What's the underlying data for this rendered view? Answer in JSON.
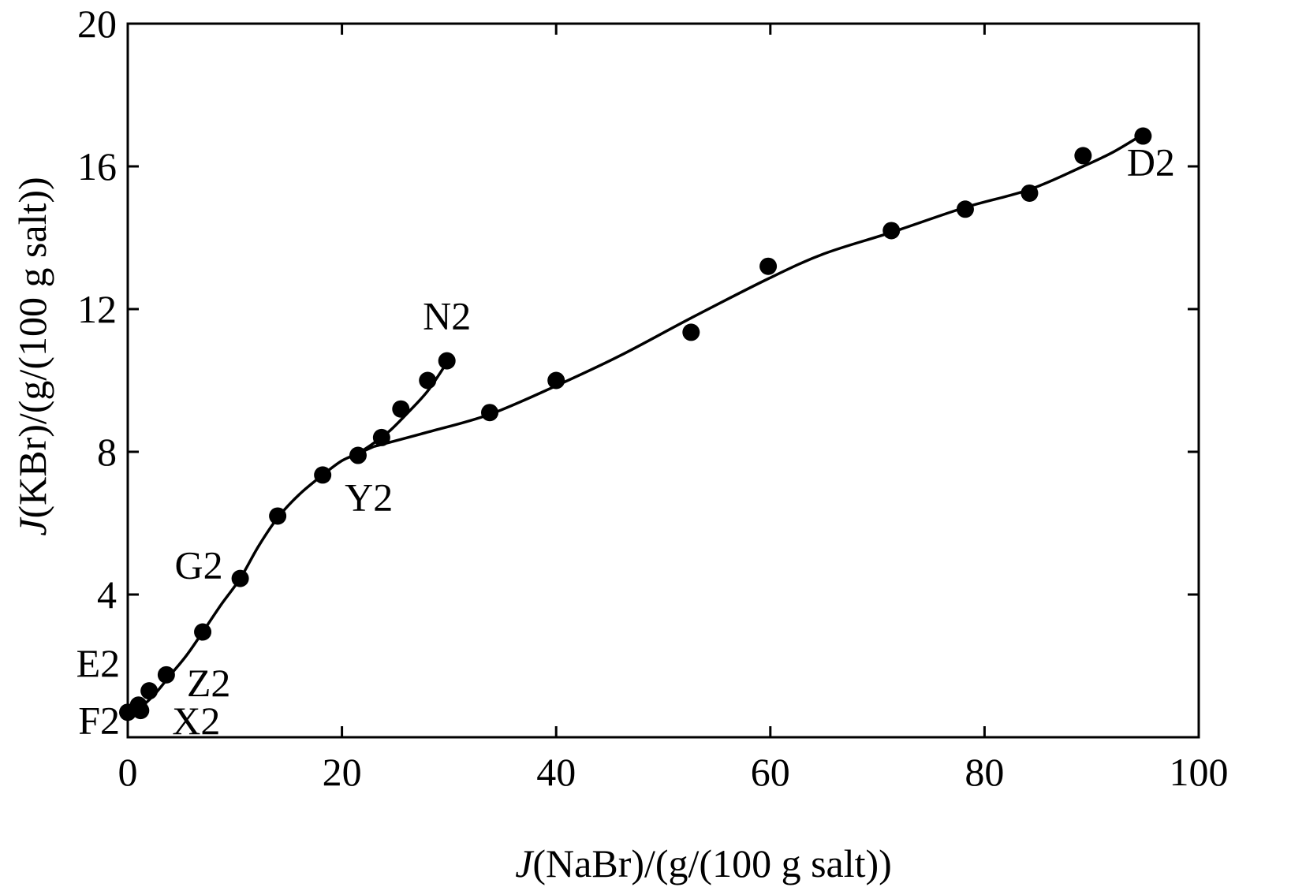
{
  "chart_data": {
    "type": "scatter",
    "xlabel_italic": "J",
    "xlabel_rest": "(NaBr)/(g/(100 g salt))",
    "ylabel_italic": "J",
    "ylabel_rest": "(KBr)/(g/(100 g salt))",
    "xlim": [
      0,
      100
    ],
    "ylim": [
      0,
      20
    ],
    "x_ticks": [
      0,
      20,
      40,
      60,
      80,
      100
    ],
    "y_ticks": [
      4,
      8,
      12,
      16,
      20
    ],
    "y_tick_labels": [
      "4",
      "8",
      "12",
      "16",
      "20"
    ],
    "x_tick_labels": [
      "0",
      "20",
      "40",
      "60",
      "80",
      "100"
    ],
    "grid": false,
    "line_color": "#000000",
    "marker_color": "#000000",
    "points": [
      {
        "x": 0.0,
        "y": 0.7
      },
      {
        "x": 1.0,
        "y": 0.9
      },
      {
        "x": 1.2,
        "y": 0.75
      },
      {
        "x": 2.0,
        "y": 1.3
      },
      {
        "x": 3.6,
        "y": 1.75
      },
      {
        "x": 7.0,
        "y": 2.95
      },
      {
        "x": 10.5,
        "y": 4.45
      },
      {
        "x": 14.0,
        "y": 6.2
      },
      {
        "x": 18.2,
        "y": 7.35
      },
      {
        "x": 21.5,
        "y": 7.9
      },
      {
        "x": 23.7,
        "y": 8.4
      },
      {
        "x": 25.5,
        "y": 9.2
      },
      {
        "x": 28.0,
        "y": 10.0
      },
      {
        "x": 29.8,
        "y": 10.55
      },
      {
        "x": 33.8,
        "y": 9.1
      },
      {
        "x": 40.0,
        "y": 10.0
      },
      {
        "x": 52.6,
        "y": 11.35
      },
      {
        "x": 59.8,
        "y": 13.2
      },
      {
        "x": 71.3,
        "y": 14.2
      },
      {
        "x": 78.2,
        "y": 14.8
      },
      {
        "x": 84.2,
        "y": 15.25
      },
      {
        "x": 89.2,
        "y": 16.3
      },
      {
        "x": 94.8,
        "y": 16.85
      }
    ],
    "curves": [
      {
        "name": "",
        "points": [
          [
            0.0,
            0.7
          ],
          [
            1.2,
            0.85
          ],
          [
            2.5,
            1.2
          ],
          [
            4.0,
            1.75
          ],
          [
            5.5,
            2.3
          ],
          [
            7.0,
            2.95
          ],
          [
            8.8,
            3.75
          ],
          [
            10.5,
            4.45
          ],
          [
            12.2,
            5.35
          ],
          [
            14.0,
            6.15
          ],
          [
            16.0,
            6.8
          ],
          [
            18.2,
            7.35
          ],
          [
            20.0,
            7.75
          ],
          [
            21.5,
            7.95
          ],
          [
            23.0,
            8.15
          ]
        ]
      },
      {
        "name": "",
        "points": [
          [
            21.5,
            7.95
          ],
          [
            23.0,
            8.25
          ],
          [
            24.5,
            8.6
          ],
          [
            26.0,
            9.05
          ],
          [
            28.0,
            9.7
          ],
          [
            29.8,
            10.5
          ]
        ]
      },
      {
        "name": "",
        "points": [
          [
            23.0,
            8.15
          ],
          [
            28.0,
            8.55
          ],
          [
            33.8,
            9.05
          ],
          [
            40.0,
            9.85
          ],
          [
            46.0,
            10.7
          ],
          [
            52.6,
            11.75
          ],
          [
            59.8,
            12.85
          ],
          [
            65.0,
            13.55
          ],
          [
            71.3,
            14.15
          ],
          [
            78.2,
            14.85
          ],
          [
            84.2,
            15.35
          ],
          [
            89.2,
            16.0
          ],
          [
            92.0,
            16.4
          ],
          [
            94.8,
            16.9
          ]
        ]
      }
    ],
    "annotations": [
      {
        "text": "N2",
        "x": 29.8,
        "y": 10.55
      },
      {
        "text": "D2",
        "x": 94.8,
        "y": 16.85
      },
      {
        "text": "Y2",
        "x": 18.2,
        "y": 7.35
      },
      {
        "text": "G2",
        "x": 10.5,
        "y": 4.45
      },
      {
        "text": "E2",
        "x": 2.0,
        "y": 1.3
      },
      {
        "text": "Z2",
        "x": 3.6,
        "y": 1.75
      },
      {
        "text": "F2",
        "x": 0.0,
        "y": 0.7
      },
      {
        "text": "X2",
        "x": 1.2,
        "y": 0.75
      }
    ]
  }
}
